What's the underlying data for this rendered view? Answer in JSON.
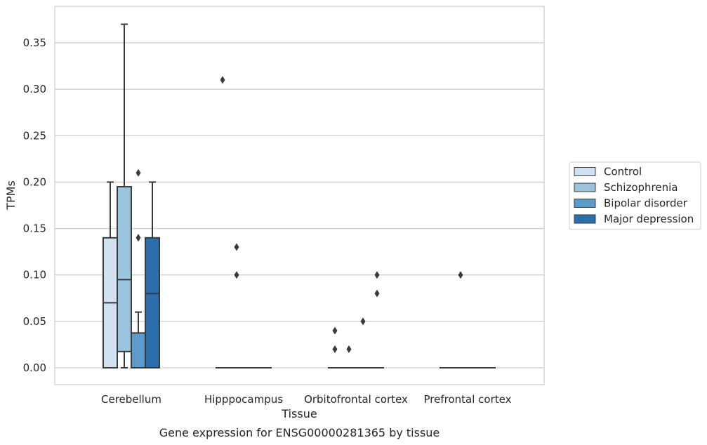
{
  "chart_data": {
    "type": "box",
    "title": "",
    "caption": "Gene expression for ENSG00000281365 by tissue",
    "xlabel": "Tissue",
    "ylabel": "TPMs",
    "ylim": [
      -0.018,
      0.39
    ],
    "yticks": [
      0.0,
      0.05,
      0.1,
      0.15,
      0.2,
      0.25,
      0.3,
      0.35
    ],
    "ytick_labels": [
      "0.00",
      "0.05",
      "0.10",
      "0.15",
      "0.20",
      "0.25",
      "0.30",
      "0.35"
    ],
    "grid": "horizontal",
    "legend_position": "right",
    "categories": [
      "Cerebellum",
      "Hipppocampus",
      "Orbitofrontal cortex",
      "Prefrontal cortex"
    ],
    "series": [
      {
        "name": "Control",
        "color": "#d0e1f2",
        "boxes": [
          {
            "category": "Cerebellum",
            "whisker_low": 0.0,
            "q1": 0.0,
            "median": 0.07,
            "q3": 0.14,
            "whisker_high": 0.2,
            "outliers": []
          },
          {
            "category": "Hipppocampus",
            "whisker_low": 0.0,
            "q1": 0.0,
            "median": 0.0,
            "q3": 0.0,
            "whisker_high": 0.0,
            "outliers": [
              0.31
            ]
          },
          {
            "category": "Orbitofrontal cortex",
            "whisker_low": 0.0,
            "q1": 0.0,
            "median": 0.0,
            "q3": 0.0,
            "whisker_high": 0.0,
            "outliers": [
              0.02,
              0.04
            ]
          },
          {
            "category": "Prefrontal cortex",
            "whisker_low": 0.0,
            "q1": 0.0,
            "median": 0.0,
            "q3": 0.0,
            "whisker_high": 0.0,
            "outliers": []
          }
        ]
      },
      {
        "name": "Schizophrenia",
        "color": "#9ac3de",
        "boxes": [
          {
            "category": "Cerebellum",
            "whisker_low": 0.0,
            "q1": 0.0175,
            "median": 0.095,
            "q3": 0.195,
            "whisker_high": 0.37,
            "outliers": []
          },
          {
            "category": "Hipppocampus",
            "whisker_low": 0.0,
            "q1": 0.0,
            "median": 0.0,
            "q3": 0.0,
            "whisker_high": 0.0,
            "outliers": [
              0.1,
              0.13
            ]
          },
          {
            "category": "Orbitofrontal cortex",
            "whisker_low": 0.0,
            "q1": 0.0,
            "median": 0.0,
            "q3": 0.0,
            "whisker_high": 0.0,
            "outliers": [
              0.02
            ]
          },
          {
            "category": "Prefrontal cortex",
            "whisker_low": 0.0,
            "q1": 0.0,
            "median": 0.0,
            "q3": 0.0,
            "whisker_high": 0.0,
            "outliers": [
              0.1
            ]
          }
        ]
      },
      {
        "name": "Bipolar disorder",
        "color": "#5b9ac9",
        "boxes": [
          {
            "category": "Cerebellum",
            "whisker_low": 0.0,
            "q1": 0.0,
            "median": 0.0,
            "q3": 0.0375,
            "whisker_high": 0.06,
            "outliers": [
              0.14,
              0.21
            ]
          },
          {
            "category": "Hipppocampus",
            "whisker_low": 0.0,
            "q1": 0.0,
            "median": 0.0,
            "q3": 0.0,
            "whisker_high": 0.0,
            "outliers": []
          },
          {
            "category": "Orbitofrontal cortex",
            "whisker_low": 0.0,
            "q1": 0.0,
            "median": 0.0,
            "q3": 0.0,
            "whisker_high": 0.0,
            "outliers": [
              0.05
            ]
          },
          {
            "category": "Prefrontal cortex",
            "whisker_low": 0.0,
            "q1": 0.0,
            "median": 0.0,
            "q3": 0.0,
            "whisker_high": 0.0,
            "outliers": []
          }
        ]
      },
      {
        "name": "Major depression",
        "color": "#2a6eae",
        "boxes": [
          {
            "category": "Cerebellum",
            "whisker_low": 0.0,
            "q1": 0.0,
            "median": 0.08,
            "q3": 0.14,
            "whisker_high": 0.2,
            "outliers": []
          },
          {
            "category": "Hipppocampus",
            "whisker_low": 0.0,
            "q1": 0.0,
            "median": 0.0,
            "q3": 0.0,
            "whisker_high": 0.0,
            "outliers": []
          },
          {
            "category": "Orbitofrontal cortex",
            "whisker_low": 0.0,
            "q1": 0.0,
            "median": 0.0,
            "q3": 0.0,
            "whisker_high": 0.0,
            "outliers": [
              0.08,
              0.1
            ]
          },
          {
            "category": "Prefrontal cortex",
            "whisker_low": 0.0,
            "q1": 0.0,
            "median": 0.0,
            "q3": 0.0,
            "whisker_high": 0.0,
            "outliers": []
          }
        ]
      }
    ]
  }
}
